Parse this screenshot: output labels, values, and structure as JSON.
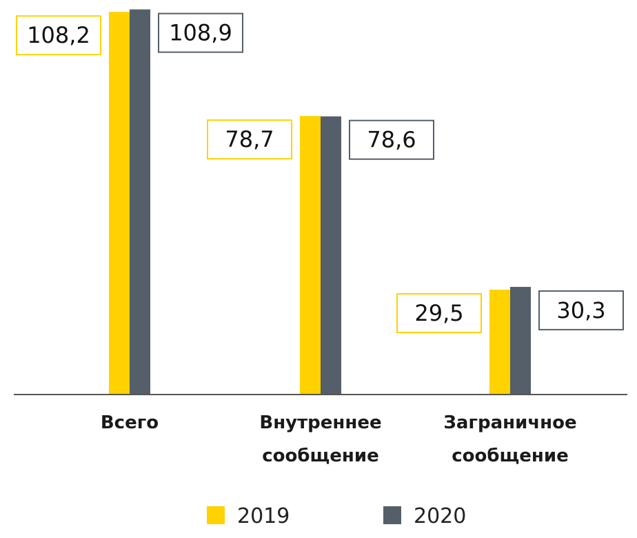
{
  "chart_data": {
    "type": "bar",
    "categories": [
      "Всего",
      "Внутреннее сообщение",
      "Заграничное сообщение"
    ],
    "category_lines": [
      [
        "Всего"
      ],
      [
        "Внутреннее",
        "сообщение"
      ],
      [
        "Заграничное",
        "сообщение"
      ]
    ],
    "series": [
      {
        "name": "2019",
        "color": "#ffd200",
        "values": [
          108.2,
          78.7,
          29.5
        ],
        "labels": [
          "108,2",
          "78,7",
          "29,5"
        ]
      },
      {
        "name": "2020",
        "color": "#545f69",
        "values": [
          108.9,
          78.6,
          30.3
        ],
        "labels": [
          "108,9",
          "78,6",
          "30,3"
        ]
      }
    ],
    "ylim": [
      0,
      110
    ],
    "grid": false,
    "legend": "bottom"
  }
}
